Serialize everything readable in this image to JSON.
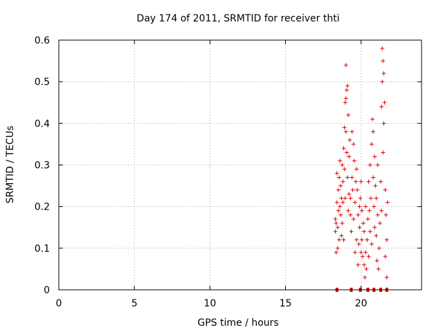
{
  "chart_data": {
    "type": "scatter",
    "title": "Day 174 of 2011, SRMTID for receiver thti",
    "xlabel": "GPS time / hours",
    "ylabel": "SRMTID / TECUs",
    "xlim": [
      0,
      24
    ],
    "ylim": [
      0,
      0.6
    ],
    "xticks": [
      0,
      5,
      10,
      15,
      20
    ],
    "xtick_labels": [
      "0",
      "5",
      "10",
      "15",
      "20"
    ],
    "yticks": [
      0,
      0.1,
      0.2,
      0.3,
      0.4,
      0.5,
      0.6
    ],
    "ytick_labels": [
      "0",
      "0.1",
      "0.2",
      "0.3",
      "0.4",
      "0.5",
      "0.6"
    ],
    "grid": true,
    "marker": "plus",
    "color": "#dd0000",
    "series": [
      {
        "name": "SRMTID",
        "points": [
          [
            18.3,
            0.14
          ],
          [
            18.3,
            0.17
          ],
          [
            18.35,
            0.09
          ],
          [
            18.35,
            0.16
          ],
          [
            18.4,
            0.28
          ],
          [
            18.4,
            0.21
          ],
          [
            18.45,
            0.15
          ],
          [
            18.45,
            0.1
          ],
          [
            18.5,
            0.24
          ],
          [
            18.5,
            0.19
          ],
          [
            18.55,
            0.27
          ],
          [
            18.55,
            0.12
          ],
          [
            18.6,
            0.2
          ],
          [
            18.6,
            0.31
          ],
          [
            18.65,
            0.18
          ],
          [
            18.65,
            0.25
          ],
          [
            18.7,
            0.13
          ],
          [
            18.7,
            0.22
          ],
          [
            18.75,
            0.3
          ],
          [
            18.75,
            0.16
          ],
          [
            18.8,
            0.26
          ],
          [
            18.8,
            0.21
          ],
          [
            18.85,
            0.12
          ],
          [
            18.85,
            0.34
          ],
          [
            18.9,
            0.39
          ],
          [
            18.9,
            0.29
          ],
          [
            18.95,
            0.45
          ],
          [
            18.95,
            0.22
          ],
          [
            19.0,
            0.46
          ],
          [
            19.0,
            0.54
          ],
          [
            19.0,
            0.38
          ],
          [
            19.05,
            0.48
          ],
          [
            19.05,
            0.33
          ],
          [
            19.1,
            0.49
          ],
          [
            19.1,
            0.27
          ],
          [
            19.15,
            0.42
          ],
          [
            19.15,
            0.19
          ],
          [
            19.2,
            0.32
          ],
          [
            19.2,
            0.23
          ],
          [
            19.25,
            0.36
          ],
          [
            19.3,
            0.22
          ],
          [
            19.3,
            0.18
          ],
          [
            19.35,
            0.14
          ],
          [
            19.4,
            0.38
          ],
          [
            19.4,
            0.27
          ],
          [
            19.45,
            0.24
          ],
          [
            19.5,
            0.35
          ],
          [
            19.5,
            0.17
          ],
          [
            19.55,
            0.31
          ],
          [
            19.6,
            0.09
          ],
          [
            19.6,
            0.21
          ],
          [
            19.65,
            0.26
          ],
          [
            19.7,
            0.29
          ],
          [
            19.7,
            0.12
          ],
          [
            19.75,
            0.24
          ],
          [
            19.8,
            0.18
          ],
          [
            19.8,
            0.06
          ],
          [
            19.85,
            0.11
          ],
          [
            19.9,
            0.2
          ],
          [
            19.9,
            0.15
          ],
          [
            19.95,
            0.22
          ],
          [
            20.0,
            0.26
          ],
          [
            20.0,
            0.09
          ],
          [
            20.05,
            0.12
          ],
          [
            20.05,
            0.19
          ],
          [
            20.1,
            0.08
          ],
          [
            20.15,
            0.16
          ],
          [
            20.2,
            0.06
          ],
          [
            20.2,
            0.14
          ],
          [
            20.25,
            0.03
          ],
          [
            20.3,
            0.09
          ],
          [
            20.3,
            0.2
          ],
          [
            20.35,
            0.05
          ],
          [
            20.4,
            0.12
          ],
          [
            20.45,
            0.17
          ],
          [
            20.5,
            0.08
          ],
          [
            20.5,
            0.26
          ],
          [
            20.55,
            0.19
          ],
          [
            20.6,
            0.14
          ],
          [
            20.6,
            0.3
          ],
          [
            20.65,
            0.22
          ],
          [
            20.7,
            0.35
          ],
          [
            20.7,
            0.11
          ],
          [
            20.75,
            0.41
          ],
          [
            20.8,
            0.27
          ],
          [
            20.8,
            0.38
          ],
          [
            20.85,
            0.2
          ],
          [
            20.9,
            0.32
          ],
          [
            20.9,
            0.15
          ],
          [
            20.95,
            0.25
          ],
          [
            21.0,
            0.13
          ],
          [
            21.0,
            0.22
          ],
          [
            21.05,
            0.07
          ],
          [
            21.1,
            0.18
          ],
          [
            21.1,
            0.3
          ],
          [
            21.15,
            0.05
          ],
          [
            21.2,
            0.1
          ],
          [
            21.25,
            0.16
          ],
          [
            21.3,
            0.26
          ],
          [
            21.35,
            0.44
          ],
          [
            21.35,
            0.19
          ],
          [
            21.4,
            0.5
          ],
          [
            21.4,
            0.58
          ],
          [
            21.45,
            0.55
          ],
          [
            21.45,
            0.33
          ],
          [
            21.5,
            0.52
          ],
          [
            21.5,
            0.4
          ],
          [
            21.55,
            0.45
          ],
          [
            21.6,
            0.24
          ],
          [
            21.6,
            0.08
          ],
          [
            21.65,
            0.18
          ],
          [
            21.7,
            0.03
          ],
          [
            21.7,
            0.12
          ],
          [
            21.75,
            0.21
          ],
          [
            18.4,
            0.0
          ],
          [
            19.35,
            0.0
          ],
          [
            19.95,
            0.0
          ],
          [
            20.45,
            0.0
          ],
          [
            20.85,
            0.0
          ],
          [
            21.3,
            0.0
          ],
          [
            21.7,
            0.0
          ]
        ]
      }
    ]
  }
}
